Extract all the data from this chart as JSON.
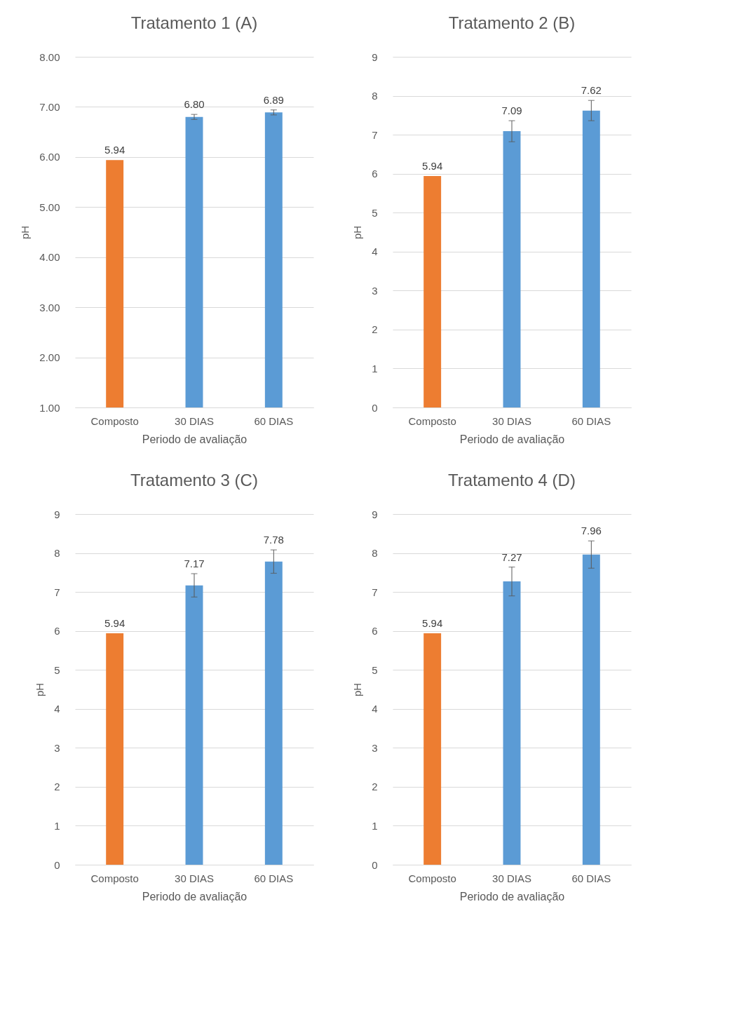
{
  "chart_data": [
    {
      "type": "bar",
      "title": "Tratamento 1 (A)",
      "xlabel": "Periodo de avaliação",
      "ylabel": "pH",
      "categories": [
        "Composto",
        "30 DIAS",
        "60 DIAS"
      ],
      "values": [
        5.94,
        6.8,
        6.89
      ],
      "colors": [
        "#ed7d31",
        "#5b9bd5",
        "#5b9bd5"
      ],
      "errors": [
        null,
        0.05,
        0.05
      ],
      "value_labels": [
        "5.94",
        "6.80",
        "6.89"
      ],
      "ylim": [
        1,
        8
      ],
      "yticks": [
        {
          "value": 1,
          "label": "1.00"
        },
        {
          "value": 2,
          "label": "2.00"
        },
        {
          "value": 3,
          "label": "3.00"
        },
        {
          "value": 4,
          "label": "4.00"
        },
        {
          "value": 5,
          "label": "5.00"
        },
        {
          "value": 6,
          "label": "6.00"
        },
        {
          "value": 7,
          "label": "7.00"
        },
        {
          "value": 8,
          "label": "8.00"
        }
      ],
      "grid": "y"
    },
    {
      "type": "bar",
      "title": "Tratamento 2 (B)",
      "xlabel": "Periodo de avaliação",
      "ylabel": "pH",
      "categories": [
        "Composto",
        "30 DIAS",
        "60 DIAS"
      ],
      "values": [
        5.94,
        7.09,
        7.62
      ],
      "colors": [
        "#ed7d31",
        "#5b9bd5",
        "#5b9bd5"
      ],
      "errors": [
        null,
        0.27,
        0.26
      ],
      "ylim": [
        0,
        9
      ],
      "yticks": [
        0,
        1,
        2,
        3,
        4,
        5,
        6,
        7,
        8,
        9
      ],
      "grid": "y",
      "data_labels": true
    },
    {
      "type": "bar",
      "title": "Tratamento 3 (C)",
      "xlabel": "Periodo de avaliação",
      "ylabel": "pH",
      "categories": [
        "Composto",
        "30 DIAS",
        "60 DIAS"
      ],
      "values": [
        5.94,
        7.17,
        7.78
      ],
      "colors": [
        "#ed7d31",
        "#5b9bd5",
        "#5b9bd5"
      ],
      "errors": [
        null,
        0.3,
        0.3
      ],
      "ylim": [
        0,
        9
      ],
      "yticks": [
        0,
        1,
        2,
        3,
        4,
        5,
        6,
        7,
        8,
        9
      ],
      "grid": "y",
      "data_labels": true
    },
    {
      "type": "bar",
      "title": "Tratamento 4 (D)",
      "xlabel": "Periodo de avaliação",
      "ylabel": "pH",
      "categories": [
        "Composto",
        "30 DIAS",
        "60 DIAS"
      ],
      "values": [
        5.94,
        7.27,
        7.96
      ],
      "colors": [
        "#ed7d31",
        "#5b9bd5",
        "#5b9bd5"
      ],
      "errors": [
        null,
        0.37,
        0.35
      ],
      "ylim": [
        0,
        9
      ],
      "yticks": [
        0,
        1,
        2,
        3,
        4,
        5,
        6,
        7,
        8,
        9
      ],
      "grid": "y",
      "data_labels": true
    }
  ]
}
